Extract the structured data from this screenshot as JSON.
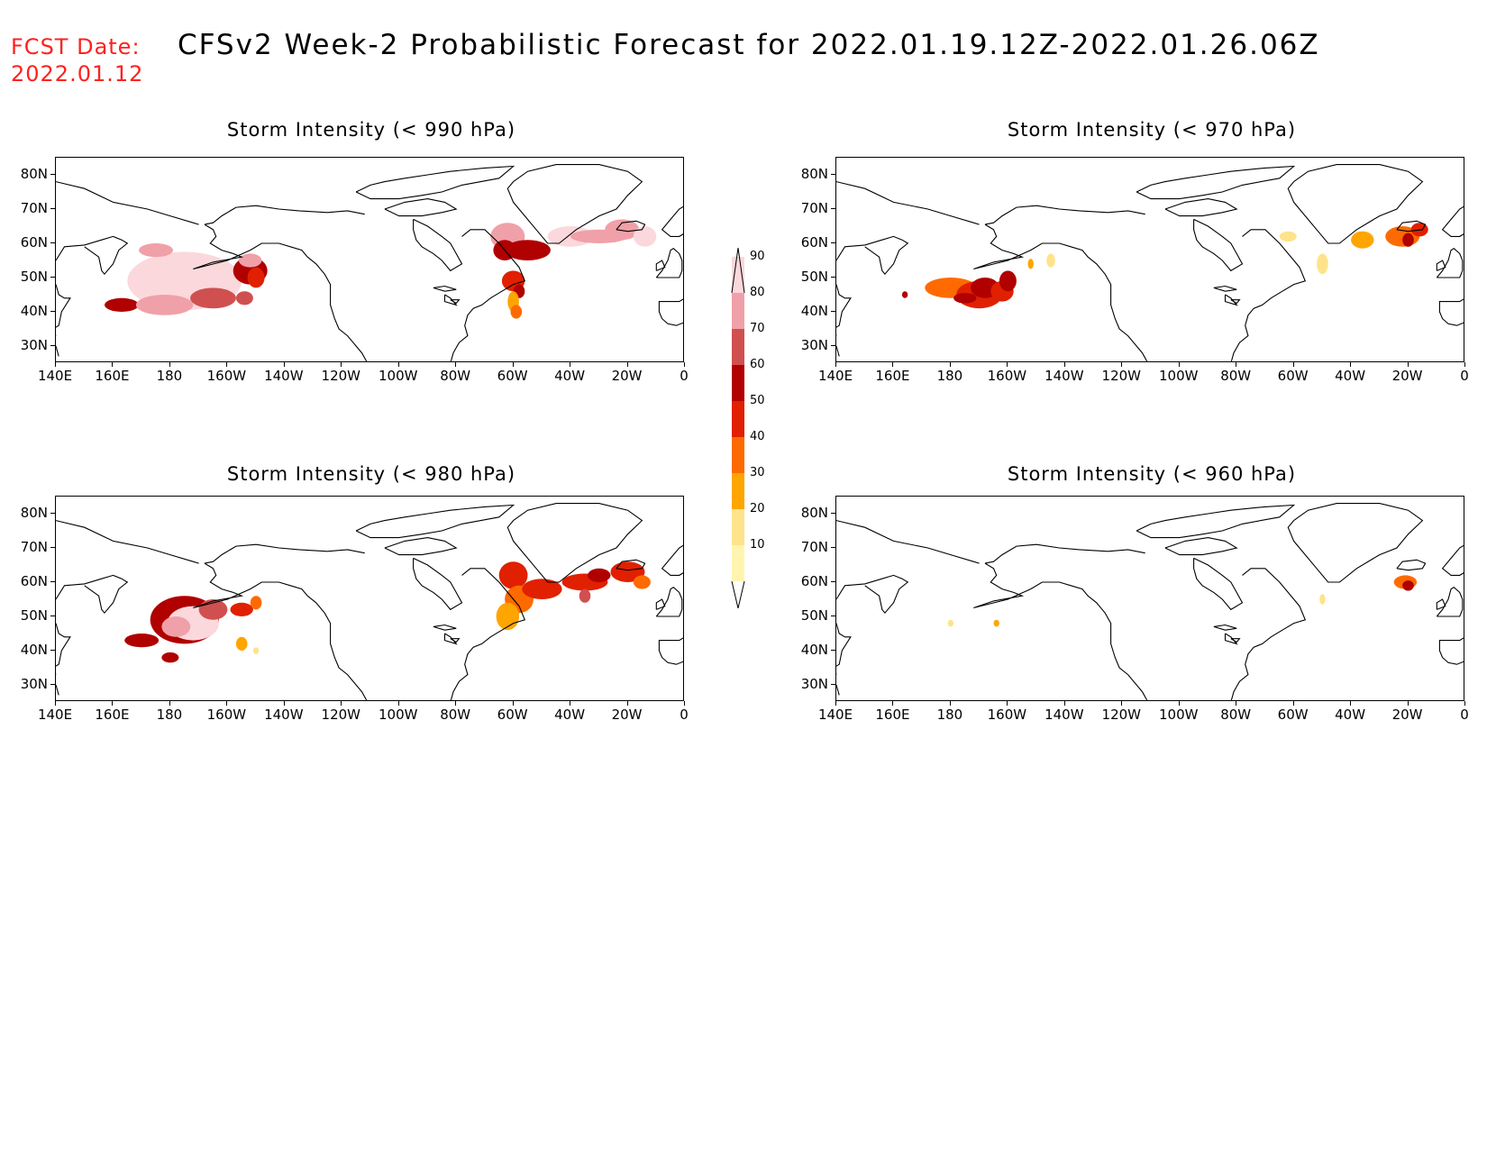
{
  "header": {
    "fcst_label": "FCST Date:",
    "fcst_date": "2022.01.12",
    "title": "CFSv2 Week-2 Probabilistic Forecast for 2022.01.19.12Z-2022.01.26.06Z"
  },
  "axes": {
    "lat_labels": [
      "80N",
      "70N",
      "60N",
      "50N",
      "40N",
      "30N"
    ],
    "lon_labels": [
      "140E",
      "160E",
      "180",
      "160W",
      "140W",
      "120W",
      "100W",
      "80W",
      "60W",
      "40W",
      "20W",
      "0"
    ]
  },
  "colorbar": {
    "levels": [
      "10",
      "20",
      "30",
      "40",
      "50",
      "60",
      "70",
      "80",
      "90"
    ],
    "colors": [
      "#fff5b0",
      "#ffe38a",
      "#ffa500",
      "#ff6a00",
      "#e02000",
      "#b00000",
      "#d05050",
      "#f0a0a8",
      "#fbd8dc"
    ]
  },
  "panels": [
    {
      "id": "p990",
      "title": "Storm Intensity (< 990 hPa)"
    },
    {
      "id": "p970",
      "title": "Storm Intensity (< 970 hPa)"
    },
    {
      "id": "p980",
      "title": "Storm Intensity (< 980 hPa)"
    },
    {
      "id": "p960",
      "title": "Storm Intensity (< 960 hPa)"
    }
  ]
}
